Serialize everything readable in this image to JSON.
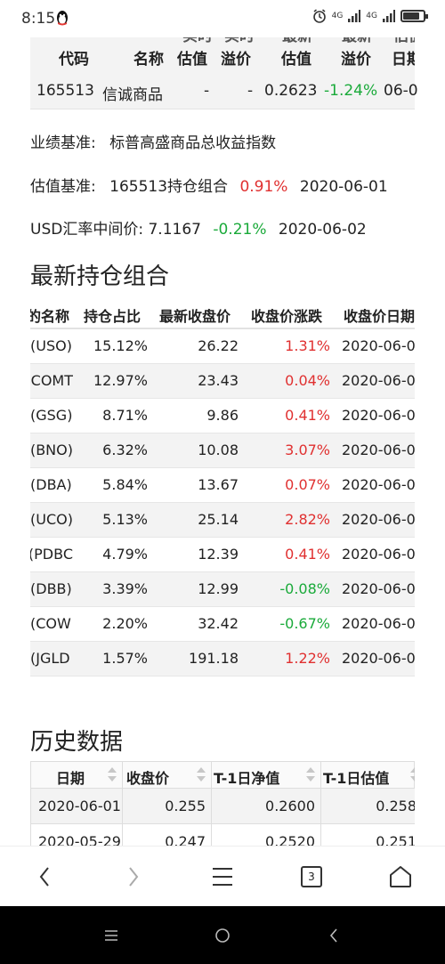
{
  "status": {
    "time": "8:15",
    "signal1": "4G",
    "signal2": "4G",
    "battery_level": 0.8
  },
  "top_table": {
    "ghost_headers": [
      "实时",
      "实时",
      "最新",
      "最新",
      "估值"
    ],
    "headers": [
      "代码",
      "名称",
      "估值",
      "溢价",
      "估值",
      "溢价",
      "日期"
    ],
    "row": {
      "code": "165513",
      "name": "信诚商品",
      "est": "-",
      "premium": "-",
      "value": "0.2623",
      "value_premium": "-1.24%",
      "date": "06-0"
    }
  },
  "info": {
    "benchmark_label": "业绩基准:",
    "benchmark_value": "标普高盛商品总收益指数",
    "valuation_label": "估值基准:",
    "valuation_value": "165513持仓组合",
    "valuation_pct": "0.91%",
    "valuation_date": "2020-06-01",
    "fx_label": "USD汇率中间价:",
    "fx_value": "7.1167",
    "fx_pct": "-0.21%",
    "fx_date": "2020-06-02"
  },
  "holdings": {
    "title": "最新持仓组合",
    "headers": [
      "的名称",
      "持仓占比",
      "最新收盘价",
      "收盘价涨跌",
      "收盘价日期"
    ],
    "rows": [
      {
        "name": "(USO)",
        "weight": "15.12%",
        "close": "26.22",
        "change": "1.31%",
        "dir": "up",
        "date": "2020-06-0"
      },
      {
        "name": "COMT)",
        "weight": "12.97%",
        "close": "23.43",
        "change": "0.04%",
        "dir": "up",
        "date": "2020-06-0"
      },
      {
        "name": "(GSG)",
        "weight": "8.71%",
        "close": "9.86",
        "change": "0.41%",
        "dir": "up",
        "date": "2020-06-0"
      },
      {
        "name": "(BNO)",
        "weight": "6.32%",
        "close": "10.08",
        "change": "3.07%",
        "dir": "up",
        "date": "2020-06-0"
      },
      {
        "name": "(DBA)",
        "weight": "5.84%",
        "close": "13.67",
        "change": "0.07%",
        "dir": "up",
        "date": "2020-06-0"
      },
      {
        "name": "(UCO)",
        "weight": "5.13%",
        "close": "25.14",
        "change": "2.82%",
        "dir": "up",
        "date": "2020-06-0"
      },
      {
        "name": "PDBC)",
        "weight": "4.79%",
        "close": "12.39",
        "change": "0.41%",
        "dir": "up",
        "date": "2020-06-0"
      },
      {
        "name": "(DBB)",
        "weight": "3.39%",
        "close": "12.99",
        "change": "-0.08%",
        "dir": "down",
        "date": "2020-06-0"
      },
      {
        "name": "COW)",
        "weight": "2.20%",
        "close": "32.42",
        "change": "-0.67%",
        "dir": "down",
        "date": "2020-06-0"
      },
      {
        "name": "JGLD)",
        "weight": "1.57%",
        "close": "191.18",
        "change": "1.22%",
        "dir": "up",
        "date": "2020-06-0"
      }
    ]
  },
  "history": {
    "title": "历史数据",
    "headers": [
      "日期",
      "收盘价",
      "T-1日净值",
      "T-1日估值"
    ],
    "rows": [
      {
        "date": "2020-06-01",
        "close": "0.255",
        "nav": "0.2600",
        "est": "0.258"
      },
      {
        "date": "2020-05-29",
        "close": "0.247",
        "nav": "0.2520",
        "est": "0.251"
      }
    ]
  },
  "browser": {
    "tab_count": "3"
  },
  "colors": {
    "up": "#e03030",
    "down": "#1aaa3a"
  }
}
